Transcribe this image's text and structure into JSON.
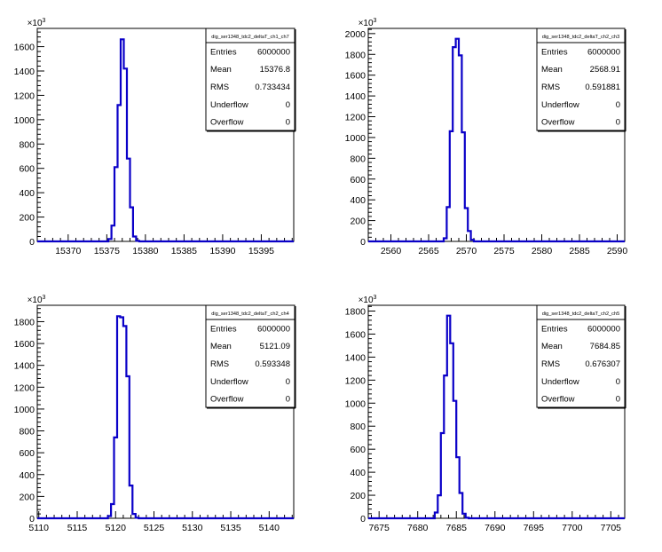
{
  "chart_data": [
    {
      "type": "bar",
      "style": "step-histogram",
      "name": "dig_ser1348_tdc2_deltaT_ch1_ch7",
      "exponent_label": "×10³",
      "x_ticks": [
        15370,
        15375,
        15380,
        15385,
        15390,
        15395
      ],
      "xlim": [
        15366.0,
        15399.2
      ],
      "y_ticks": [
        0,
        200,
        400,
        600,
        800,
        1000,
        1200,
        1400,
        1600
      ],
      "ylim": [
        0,
        1750
      ],
      "bins": [
        {
          "x0": 15375.2,
          "x1": 15375.6,
          "value": 20
        },
        {
          "x0": 15375.6,
          "x1": 15376.0,
          "value": 130
        },
        {
          "x0": 15376.0,
          "x1": 15376.4,
          "value": 610
        },
        {
          "x0": 15376.4,
          "x1": 15376.8,
          "value": 1120
        },
        {
          "x0": 15376.8,
          "x1": 15377.2,
          "value": 1660
        },
        {
          "x0": 15377.2,
          "x1": 15377.6,
          "value": 1420
        },
        {
          "x0": 15377.6,
          "x1": 15378.0,
          "value": 680
        },
        {
          "x0": 15378.0,
          "x1": 15378.4,
          "value": 280
        },
        {
          "x0": 15378.4,
          "x1": 15378.8,
          "value": 40
        },
        {
          "x0": 15378.8,
          "x1": 15379.2,
          "value": 5
        }
      ],
      "stats": [
        {
          "label": "Entries",
          "value": "6000000"
        },
        {
          "label": "Mean",
          "value": "15376.8"
        },
        {
          "label": "RMS",
          "value": "0.733434"
        },
        {
          "label": "Underflow",
          "value": "0"
        },
        {
          "label": "Overflow",
          "value": "0"
        }
      ]
    },
    {
      "type": "bar",
      "style": "step-histogram",
      "name": "dig_ser1348_tdc2_deltaT_ch2_ch3",
      "exponent_label": "×10³",
      "x_ticks": [
        2560,
        2565,
        2570,
        2575,
        2580,
        2585,
        2590
      ],
      "xlim": [
        2557.0,
        2591.0
      ],
      "y_ticks": [
        0,
        200,
        400,
        600,
        800,
        1000,
        1200,
        1400,
        1600,
        1800,
        2000
      ],
      "ylim": [
        0,
        2050
      ],
      "bins": [
        {
          "x0": 2567.0,
          "x1": 2567.4,
          "value": 30
        },
        {
          "x0": 2567.4,
          "x1": 2567.8,
          "value": 330
        },
        {
          "x0": 2567.8,
          "x1": 2568.2,
          "value": 1060
        },
        {
          "x0": 2568.2,
          "x1": 2568.6,
          "value": 1870
        },
        {
          "x0": 2568.6,
          "x1": 2569.0,
          "value": 1950
        },
        {
          "x0": 2569.0,
          "x1": 2569.4,
          "value": 1790
        },
        {
          "x0": 2569.4,
          "x1": 2569.8,
          "value": 1050
        },
        {
          "x0": 2569.8,
          "x1": 2570.2,
          "value": 320
        },
        {
          "x0": 2570.2,
          "x1": 2570.6,
          "value": 100
        },
        {
          "x0": 2570.6,
          "x1": 2571.0,
          "value": 15
        }
      ],
      "stats": [
        {
          "label": "Entries",
          "value": "6000000"
        },
        {
          "label": "Mean",
          "value": "2568.91"
        },
        {
          "label": "RMS",
          "value": "0.591881"
        },
        {
          "label": "Underflow",
          "value": "0"
        },
        {
          "label": "Overflow",
          "value": "0"
        }
      ]
    },
    {
      "type": "bar",
      "style": "step-histogram",
      "name": "dig_ser1348_tdc2_deltaT_ch2_ch4",
      "exponent_label": "×10³",
      "x_ticks": [
        5110,
        5115,
        5120,
        5125,
        5130,
        5135,
        5140
      ],
      "xlim": [
        5109.8,
        5143.2
      ],
      "y_ticks": [
        0,
        200,
        400,
        600,
        800,
        1000,
        1200,
        1400,
        1600,
        1800
      ],
      "ylim": [
        0,
        1950
      ],
      "bins": [
        {
          "x0": 5119.0,
          "x1": 5119.4,
          "value": 20
        },
        {
          "x0": 5119.4,
          "x1": 5119.8,
          "value": 130
        },
        {
          "x0": 5119.8,
          "x1": 5120.2,
          "value": 740
        },
        {
          "x0": 5120.2,
          "x1": 5120.6,
          "value": 1850
        },
        {
          "x0": 5120.6,
          "x1": 5121.0,
          "value": 1840
        },
        {
          "x0": 5121.0,
          "x1": 5121.4,
          "value": 1760
        },
        {
          "x0": 5121.4,
          "x1": 5121.8,
          "value": 1300
        },
        {
          "x0": 5121.8,
          "x1": 5122.2,
          "value": 300
        },
        {
          "x0": 5122.2,
          "x1": 5122.6,
          "value": 40
        },
        {
          "x0": 5122.6,
          "x1": 5123.0,
          "value": 5
        }
      ],
      "stats": [
        {
          "label": "Entries",
          "value": "6000000"
        },
        {
          "label": "Mean",
          "value": "5121.09"
        },
        {
          "label": "RMS",
          "value": "0.593348"
        },
        {
          "label": "Underflow",
          "value": "0"
        },
        {
          "label": "Overflow",
          "value": "0"
        }
      ]
    },
    {
      "type": "bar",
      "style": "step-histogram",
      "name": "dig_ser1348_tdc2_deltaT_ch2_ch5",
      "exponent_label": "×10³",
      "x_ticks": [
        7675,
        7680,
        7685,
        7690,
        7695,
        7700,
        7705
      ],
      "xlim": [
        7673.6,
        7706.8
      ],
      "y_ticks": [
        0,
        200,
        400,
        600,
        800,
        1000,
        1200,
        1400,
        1600,
        1800
      ],
      "ylim": [
        0,
        1850
      ],
      "bins": [
        {
          "x0": 7682.2,
          "x1": 7682.6,
          "value": 50
        },
        {
          "x0": 7682.6,
          "x1": 7683.0,
          "value": 200
        },
        {
          "x0": 7683.0,
          "x1": 7683.4,
          "value": 740
        },
        {
          "x0": 7683.4,
          "x1": 7683.8,
          "value": 1240
        },
        {
          "x0": 7683.8,
          "x1": 7684.2,
          "value": 1760
        },
        {
          "x0": 7684.2,
          "x1": 7684.6,
          "value": 1520
        },
        {
          "x0": 7684.6,
          "x1": 7685.0,
          "value": 1020
        },
        {
          "x0": 7685.0,
          "x1": 7685.4,
          "value": 530
        },
        {
          "x0": 7685.4,
          "x1": 7685.8,
          "value": 220
        },
        {
          "x0": 7685.8,
          "x1": 7686.2,
          "value": 40
        },
        {
          "x0": 7686.2,
          "x1": 7686.6,
          "value": 5
        }
      ],
      "stats": [
        {
          "label": "Entries",
          "value": "6000000"
        },
        {
          "label": "Mean",
          "value": "7684.85"
        },
        {
          "label": "RMS",
          "value": "0.676307"
        },
        {
          "label": "Underflow",
          "value": "0"
        },
        {
          "label": "Overflow",
          "value": "0"
        }
      ]
    }
  ],
  "colors": {
    "line": "#0a00c8",
    "axis": "#000000",
    "background": "#ffffff"
  }
}
